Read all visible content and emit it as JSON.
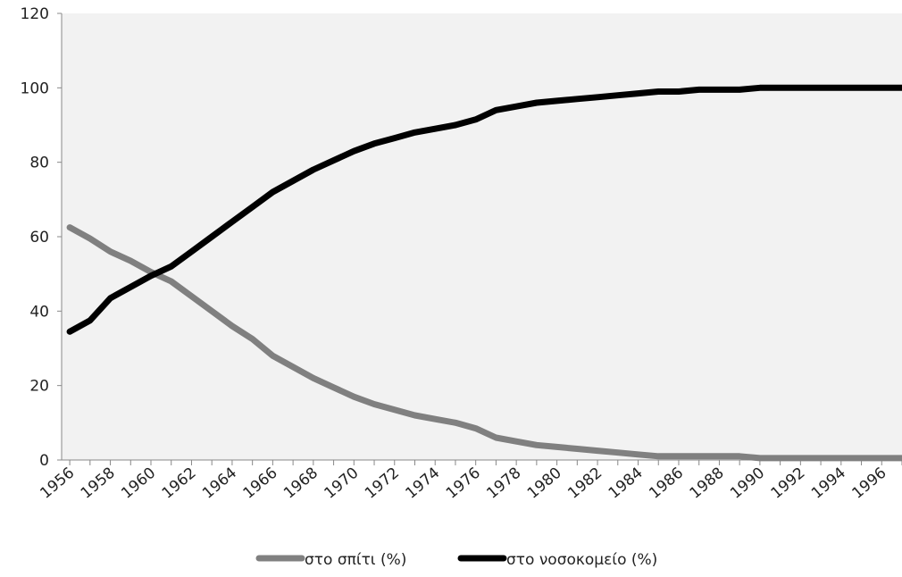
{
  "chart_data": {
    "type": "line",
    "title": "",
    "xlabel": "",
    "ylabel": "",
    "ylim": [
      0,
      120
    ],
    "yticks": [
      "0",
      "20",
      "40",
      "60",
      "80",
      "100",
      "120"
    ],
    "x": [
      1956,
      1957,
      1958,
      1959,
      1960,
      1961,
      1962,
      1963,
      1964,
      1965,
      1966,
      1967,
      1968,
      1969,
      1970,
      1971,
      1972,
      1973,
      1974,
      1975,
      1976,
      1977,
      1978,
      1979,
      1980,
      1981,
      1982,
      1983,
      1984,
      1985,
      1986,
      1987,
      1988,
      1989,
      1990,
      1991,
      1992,
      1993,
      1994,
      1995,
      1996,
      1997
    ],
    "xtick_labels": [
      "1956",
      "1958",
      "1960",
      "1962",
      "1964",
      "1966",
      "1968",
      "1970",
      "1972",
      "1974",
      "1976",
      "1978",
      "1980",
      "1982",
      "1984",
      "1986",
      "1988",
      "1990",
      "1992",
      "1994",
      "1996"
    ],
    "grid": false,
    "legend_position": "bottom",
    "series": [
      {
        "name": "στο σπίτι (%)",
        "color": "#808080",
        "values": [
          62.5,
          59.5,
          56,
          53.5,
          50.5,
          48,
          44,
          40,
          36,
          32.5,
          28,
          25,
          22,
          19.5,
          17,
          15,
          13.5,
          12,
          11,
          10,
          8.5,
          6,
          5,
          4,
          3.5,
          3,
          2.5,
          2,
          1.5,
          1,
          1,
          1,
          1,
          1,
          0.5,
          0.5,
          0.5,
          0.5,
          0.5,
          0.5,
          0.5,
          0.5
        ]
      },
      {
        "name": "στο νοσοκομείο (%)",
        "color": "#000000",
        "values": [
          34.5,
          37.5,
          43.5,
          46.5,
          49.5,
          52,
          56,
          60,
          64,
          68,
          72,
          75,
          78,
          80.5,
          83,
          85,
          86.5,
          88,
          89,
          90,
          91.5,
          94,
          95,
          96,
          96.5,
          97,
          97.5,
          98,
          98.5,
          99,
          99,
          99.5,
          99.5,
          99.5,
          100,
          100,
          100,
          100,
          100,
          100,
          100,
          100
        ]
      }
    ]
  }
}
